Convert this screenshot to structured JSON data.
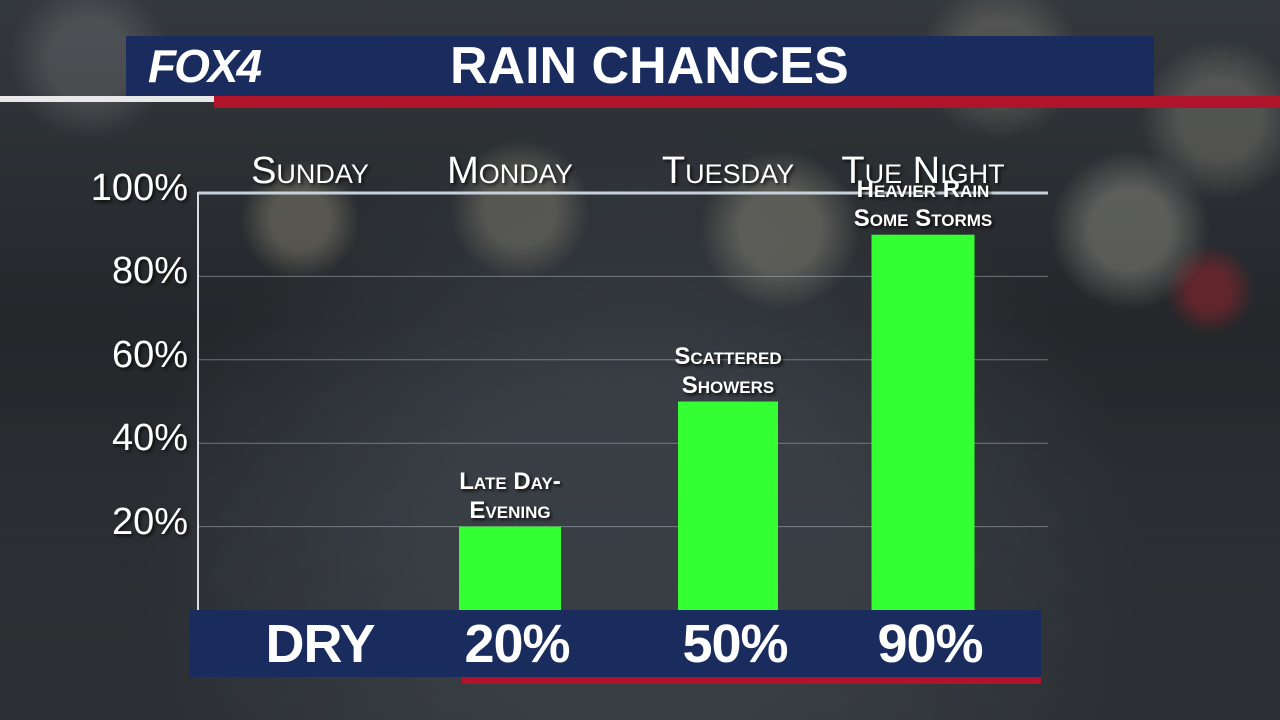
{
  "header": {
    "logo": "FOX4",
    "title": "RAIN CHANCES"
  },
  "chart_data": {
    "type": "bar",
    "title": "RAIN CHANCES",
    "categories": [
      "Sunday",
      "Monday",
      "Tuesday",
      "Tue Night"
    ],
    "values": [
      0,
      20,
      50,
      90
    ],
    "ylim": [
      0,
      100
    ],
    "yticks": [
      "20%",
      "40%",
      "60%",
      "80%",
      "100%"
    ],
    "ytick_values": [
      20,
      40,
      60,
      80,
      100
    ],
    "grid": true,
    "bar_color": "#33ff33",
    "annotations": [
      {
        "category": "Monday",
        "lines": [
          "Late Day-",
          "Evening"
        ]
      },
      {
        "category": "Tuesday",
        "lines": [
          "Scattered",
          "Showers"
        ]
      },
      {
        "category": "Tue Night",
        "lines": [
          "Heavier Rain",
          "Some Storms"
        ]
      }
    ],
    "footer_labels": [
      "DRY",
      "20%",
      "50%",
      "90%"
    ]
  },
  "colors": {
    "navy": "#1a2b5e",
    "red": "#b0142a",
    "bar": "#33ff33"
  }
}
